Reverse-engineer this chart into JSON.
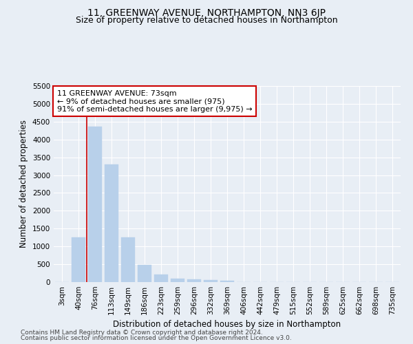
{
  "title": "11, GREENWAY AVENUE, NORTHAMPTON, NN3 6JP",
  "subtitle": "Size of property relative to detached houses in Northampton",
  "xlabel": "Distribution of detached houses by size in Northampton",
  "ylabel": "Number of detached properties",
  "footer_line1": "Contains HM Land Registry data © Crown copyright and database right 2024.",
  "footer_line2": "Contains public sector information licensed under the Open Government Licence v3.0.",
  "bar_labels": [
    "3sqm",
    "40sqm",
    "76sqm",
    "113sqm",
    "149sqm",
    "186sqm",
    "223sqm",
    "259sqm",
    "296sqm",
    "332sqm",
    "369sqm",
    "406sqm",
    "442sqm",
    "479sqm",
    "515sqm",
    "552sqm",
    "589sqm",
    "625sqm",
    "662sqm",
    "698sqm",
    "735sqm"
  ],
  "bar_values": [
    0,
    1260,
    4370,
    3300,
    1260,
    490,
    210,
    100,
    80,
    55,
    45,
    0,
    0,
    0,
    0,
    0,
    0,
    0,
    0,
    0,
    0
  ],
  "bar_color": "#b8d0ea",
  "bar_edge_color": "#b8d0ea",
  "vline_x": 1.5,
  "vline_color": "#cc0000",
  "annotation_line1": "11 GREENWAY AVENUE: 73sqm",
  "annotation_line2": "← 9% of detached houses are smaller (975)",
  "annotation_line3": "91% of semi-detached houses are larger (9,975) →",
  "annotation_box_color": "#ffffff",
  "annotation_box_edge": "#cc0000",
  "ylim": [
    0,
    5500
  ],
  "yticks": [
    0,
    500,
    1000,
    1500,
    2000,
    2500,
    3000,
    3500,
    4000,
    4500,
    5000,
    5500
  ],
  "background_color": "#e8eef5",
  "grid_color": "#ffffff",
  "title_fontsize": 10,
  "subtitle_fontsize": 9,
  "axis_label_fontsize": 8.5,
  "tick_fontsize": 7.5,
  "footer_fontsize": 6.5
}
